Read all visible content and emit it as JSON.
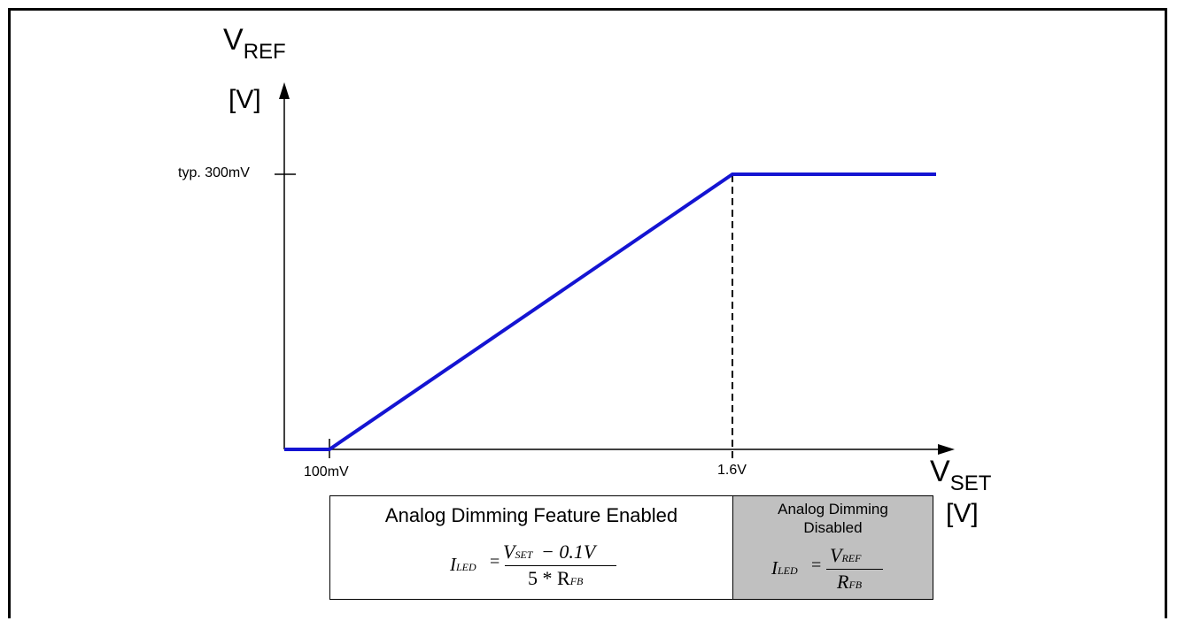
{
  "y_axis": {
    "symbol": "V",
    "subscript": "REF",
    "unit": "[V]"
  },
  "x_axis": {
    "symbol": "V",
    "subscript": "SET",
    "unit": "[V]"
  },
  "ticks": {
    "y_typ_label": "typ. 300mV",
    "x_low_label": "100mV",
    "x_high_label": "1.6V"
  },
  "curve_color": "#1414d2",
  "enabled_box": {
    "title": "Analog Dimming Feature Enabled",
    "formula": {
      "lhs": "I",
      "lhs_sub": "LED",
      "numerator": "V",
      "numerator_sub": "SET",
      "numerator_rest": "− 0.1V",
      "denominator": "5 * R",
      "denominator_sub": "FB"
    }
  },
  "disabled_box": {
    "title": "Analog Dimming Disabled",
    "background": "#c0c0c0",
    "formula": {
      "lhs": "I",
      "lhs_sub": "LED",
      "numerator": "V",
      "numerator_sub": "REF",
      "denominator": "R",
      "denominator_sub": "FB"
    }
  }
}
